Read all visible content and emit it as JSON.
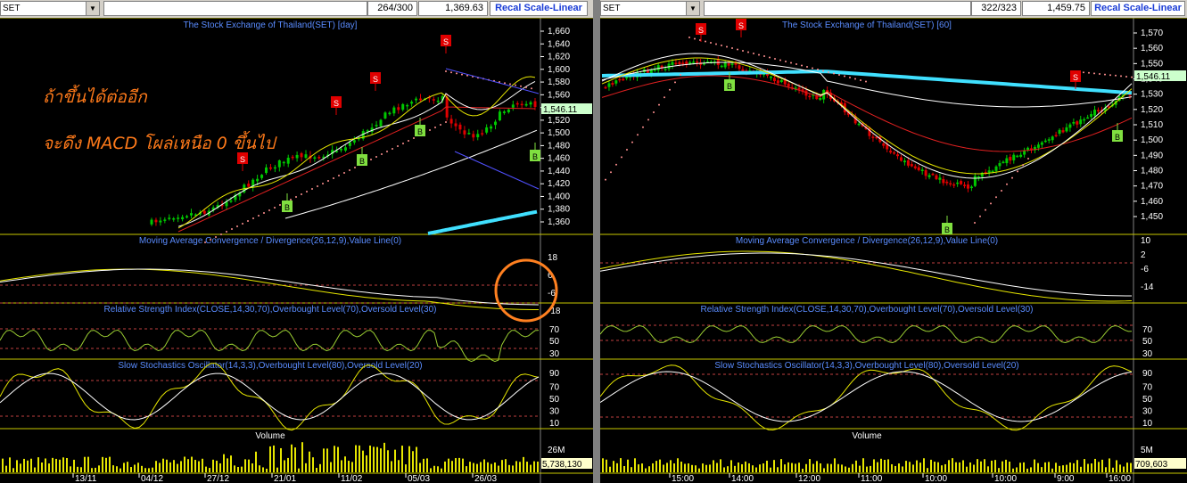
{
  "left": {
    "symbol": "SET",
    "bar_count": "264/300",
    "value": "1,369.63",
    "recal_label": "Recal Scale-Linear",
    "chart_title": "The Stock Exchange of Thailand(SET) [day]",
    "price_ticks": [
      "1,660",
      "1,640",
      "1,620",
      "1,600",
      "1,580",
      "1,560",
      "1,540",
      "1,520",
      "1,500",
      "1,480",
      "1,460",
      "1,440",
      "1,420",
      "1,400",
      "1,380",
      "1,360"
    ],
    "price_label": "1,546.11",
    "macd_title": "Moving Average Convergence / Divergence(26,12,9),Value Line(0)",
    "macd_ticks": [
      "18",
      "6",
      "-6",
      "-18"
    ],
    "rsi_title": "Relative Strength Index(CLOSE,14,30,70),Overbought Level(70),Oversold Level(30)",
    "rsi_ticks": [
      "70",
      "50",
      "30"
    ],
    "stoch_title": "Slow Stochastics Oscillator(14,3,3),Overbought Level(80),Oversold Level(20)",
    "stoch_ticks": [
      "90",
      "70",
      "50",
      "30",
      "10"
    ],
    "volume_title": "Volume",
    "volume_tick": "26M",
    "volume_value": "5,738,130",
    "dates": [
      "13/11",
      "04/12",
      "27/12",
      "21/01",
      "11/02",
      "05/03",
      "26/03"
    ],
    "annotation_line1": "ถ้าขึ้นได้ต่ออีก",
    "annotation_line2": "จะดึง MACD โผล่เหนือ 0 ขึ้นไป"
  },
  "right": {
    "symbol": "SET",
    "bar_count": "322/323",
    "value": "1,459.75",
    "recal_label": "Recal Scale-Linear",
    "chart_title": "The Stock Exchange of Thailand(SET) [60]",
    "price_ticks": [
      "1,570",
      "1,560",
      "1,550",
      "1,540",
      "1,530",
      "1,520",
      "1,510",
      "1,500",
      "1,490",
      "1,480",
      "1,470",
      "1,460",
      "1,450"
    ],
    "price_label": "1,546.11",
    "macd_title": "Moving Average Convergence / Divergence(26,12,9),Value Line(0)",
    "macd_ticks": [
      "10",
      "2",
      "-6",
      "-14"
    ],
    "rsi_title": "Relative Strength Index(CLOSE,14,30,70),Overbought Level(70),Oversold Level(30)",
    "rsi_ticks": [
      "70",
      "50",
      "30"
    ],
    "stoch_title": "Slow Stochastics Oscillator(14,3,3),Overbought Level(80),Oversold Level(20)",
    "stoch_ticks": [
      "90",
      "70",
      "50",
      "30",
      "10"
    ],
    "volume_title": "Volume",
    "volume_tick": "5M",
    "volume_value": "709,603",
    "dates": [
      "15:00",
      "14:00",
      "12:00",
      "11:00",
      "10:00",
      "10:00",
      "9:00",
      "16:00"
    ]
  },
  "colors": {
    "up": "#00c800",
    "down": "#e00000",
    "signal_sell": "#e00000",
    "signal_buy": "#80e040",
    "axis_text": "#ffffff",
    "title_text": "#5a8cff",
    "separator_line": "#c8c800",
    "ma_cyan": "#40e0ff",
    "highlight_circle": "#ff8020"
  },
  "signals": {
    "sell": "S",
    "buy": "B"
  }
}
